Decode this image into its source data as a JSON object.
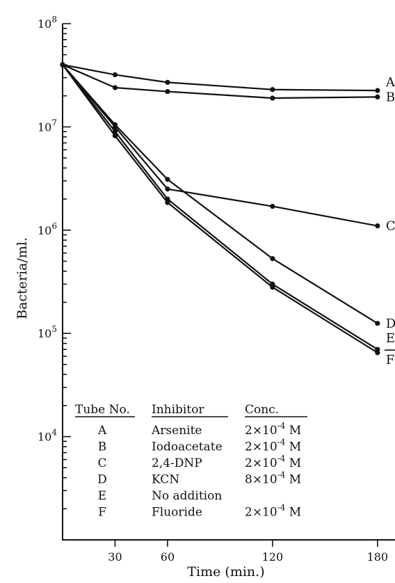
{
  "chart_data": {
    "type": "line",
    "xlabel": "Time (min.)",
    "ylabel": "Bacteria/ml.",
    "x_ticks": [
      30,
      60,
      120,
      180
    ],
    "y_ticks": [
      {
        "value": 10000,
        "base": "10",
        "exp": "4"
      },
      {
        "value": 100000,
        "base": "10",
        "exp": "5"
      },
      {
        "value": 1000000,
        "base": "10",
        "exp": "6"
      },
      {
        "value": 10000000,
        "base": "10",
        "exp": "7"
      },
      {
        "value": 100000000,
        "base": "10",
        "exp": "8"
      }
    ],
    "y_scale": "log",
    "xlim": [
      0,
      190
    ],
    "ylim": [
      1000,
      100000000
    ],
    "grid": false,
    "series": [
      {
        "name": "A",
        "x": [
          0,
          30,
          60,
          120,
          180
        ],
        "y": [
          40000000,
          32000000,
          27000000,
          23000000,
          22500000
        ]
      },
      {
        "name": "B",
        "x": [
          0,
          30,
          60,
          120,
          180
        ],
        "y": [
          40000000,
          24000000,
          22000000,
          19000000,
          19500000
        ]
      },
      {
        "name": "C",
        "x": [
          0,
          30,
          60,
          120,
          180
        ],
        "y": [
          40000000,
          10000000,
          2500000,
          1700000,
          1100000
        ]
      },
      {
        "name": "D",
        "x": [
          0,
          30,
          60,
          120,
          180
        ],
        "y": [
          40000000,
          10500000,
          3100000,
          530000,
          125000
        ]
      },
      {
        "name": "E",
        "x": [
          0,
          30,
          60,
          120,
          180
        ],
        "y": [
          40000000,
          9000000,
          2000000,
          300000,
          70000
        ]
      },
      {
        "name": "F",
        "x": [
          0,
          30,
          60,
          120,
          180
        ],
        "y": [
          40000000,
          8200000,
          1850000,
          280000,
          65000
        ]
      }
    ],
    "legend": {
      "placement": "inside-lower-left",
      "headers": [
        "Tube No.",
        "Inhibitor",
        "Conc."
      ],
      "rows": [
        {
          "tube": "A",
          "inhibitor": "Arsenite",
          "conc": {
            "mant": "2×10",
            "exp": "-4",
            "unit": "M"
          }
        },
        {
          "tube": "B",
          "inhibitor": "Iodoacetate",
          "conc": {
            "mant": "2×10",
            "exp": "-4",
            "unit": "M"
          }
        },
        {
          "tube": "C",
          "inhibitor": "2,4-DNP",
          "conc": {
            "mant": "2×10",
            "exp": "-4",
            "unit": "M"
          }
        },
        {
          "tube": "D",
          "inhibitor": "KCN",
          "conc": {
            "mant": "8×10",
            "exp": "-4",
            "unit": "M"
          }
        },
        {
          "tube": "E",
          "inhibitor": "No addition",
          "conc": null
        },
        {
          "tube": "F",
          "inhibitor": "Fluoride",
          "conc": {
            "mant": "2×10",
            "exp": "-4",
            "unit": "M"
          }
        }
      ]
    }
  }
}
